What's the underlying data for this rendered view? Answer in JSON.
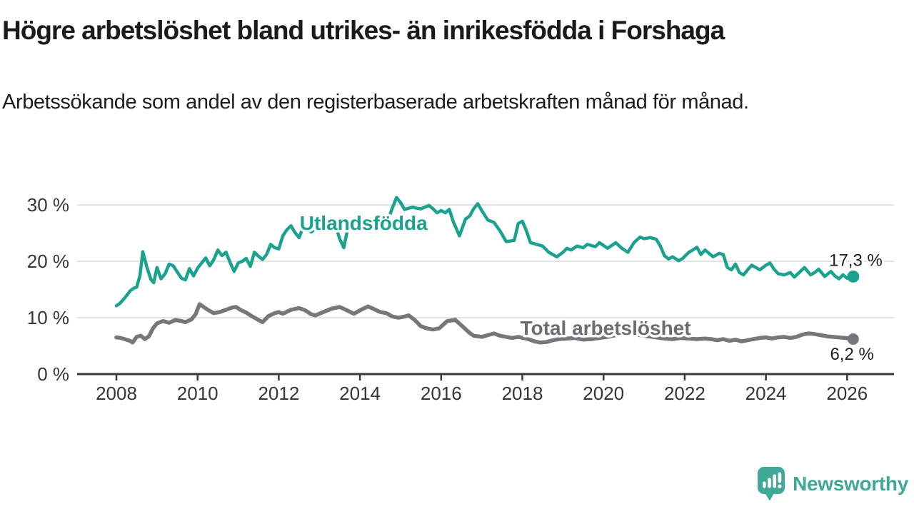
{
  "header": {
    "title": "Högre arbetslöshet bland utrikes- än inrikesfödda i Forshaga",
    "subtitle": "Arbetssökande som andel av den registerbaserade arbetskraften månad för månad."
  },
  "footer": {
    "brand_name": "Newsworthy",
    "logo_icon": "bar-chart-speech-bubble-icon"
  },
  "colors": {
    "accent_teal": "#1aa28f",
    "series_gray": "#76767b",
    "series_label_gray": "#6c6c71",
    "axis_text": "#363636",
    "gridline": "#d8d8d8",
    "axis_line": "#3a3a3a",
    "value_label_text": "#1f1f1f",
    "logo_teal": "#3fa897",
    "background": "#ffffff"
  },
  "chart_data": {
    "type": "line",
    "title": "Högre arbetslöshet bland utrikes- än inrikesfödda i Forshaga",
    "subtitle": "Arbetssökande som andel av den registerbaserade arbetskraften månad för månad.",
    "unit": "%",
    "grid": "horizontal-only",
    "legend_position": "inline-labels-on-lines",
    "x_axis": {
      "tick_years": [
        2008,
        2010,
        2012,
        2014,
        2016,
        2018,
        2020,
        2022,
        2024,
        2026
      ],
      "tick_labels": [
        "2008",
        "2010",
        "2012",
        "2014",
        "2016",
        "2018",
        "2020",
        "2022",
        "2024",
        "2026"
      ],
      "range": [
        2007.0,
        2027.2
      ]
    },
    "y_axis": {
      "tick_values": [
        0,
        10,
        20,
        30
      ],
      "tick_labels": [
        "0 %",
        "10 %",
        "20 %",
        "30 %"
      ],
      "range": [
        0,
        32
      ]
    },
    "series": [
      {
        "id": "total",
        "name": "Total arbetslöshet",
        "color": "#76767b",
        "label_color": "#6c6c71",
        "line_width": 5.5,
        "end_value": 6.2,
        "end_value_label": "6,2 %",
        "label_anchor": {
          "x_year": 2020.05,
          "y_pct": 6.96
        },
        "points": [
          [
            2008.0,
            6.5
          ],
          [
            2008.1,
            6.4
          ],
          [
            2008.2,
            6.2
          ],
          [
            2008.33,
            5.9
          ],
          [
            2008.4,
            5.6
          ],
          [
            2008.5,
            6.6
          ],
          [
            2008.6,
            6.8
          ],
          [
            2008.7,
            6.2
          ],
          [
            2008.8,
            6.7
          ],
          [
            2008.9,
            8.1
          ],
          [
            2009.0,
            9.0
          ],
          [
            2009.15,
            9.4
          ],
          [
            2009.3,
            9.1
          ],
          [
            2009.45,
            9.6
          ],
          [
            2009.6,
            9.4
          ],
          [
            2009.7,
            9.2
          ],
          [
            2009.85,
            9.7
          ],
          [
            2009.95,
            10.6
          ],
          [
            2010.05,
            12.4
          ],
          [
            2010.15,
            11.9
          ],
          [
            2010.25,
            11.4
          ],
          [
            2010.4,
            10.8
          ],
          [
            2010.55,
            11.0
          ],
          [
            2010.7,
            11.4
          ],
          [
            2010.85,
            11.8
          ],
          [
            2010.95,
            11.9
          ],
          [
            2011.05,
            11.4
          ],
          [
            2011.2,
            10.9
          ],
          [
            2011.35,
            10.2
          ],
          [
            2011.5,
            9.6
          ],
          [
            2011.6,
            9.2
          ],
          [
            2011.75,
            10.3
          ],
          [
            2011.9,
            10.8
          ],
          [
            2012.0,
            11.0
          ],
          [
            2012.1,
            10.7
          ],
          [
            2012.3,
            11.4
          ],
          [
            2012.5,
            11.7
          ],
          [
            2012.65,
            11.3
          ],
          [
            2012.8,
            10.6
          ],
          [
            2012.9,
            10.4
          ],
          [
            2013.1,
            11.0
          ],
          [
            2013.3,
            11.6
          ],
          [
            2013.5,
            11.9
          ],
          [
            2013.65,
            11.4
          ],
          [
            2013.85,
            10.7
          ],
          [
            2014.0,
            11.3
          ],
          [
            2014.2,
            12.0
          ],
          [
            2014.35,
            11.5
          ],
          [
            2014.5,
            11.0
          ],
          [
            2014.65,
            10.8
          ],
          [
            2014.8,
            10.2
          ],
          [
            2014.95,
            10.0
          ],
          [
            2015.1,
            10.2
          ],
          [
            2015.2,
            10.4
          ],
          [
            2015.35,
            9.6
          ],
          [
            2015.5,
            8.5
          ],
          [
            2015.65,
            8.1
          ],
          [
            2015.8,
            7.9
          ],
          [
            2015.95,
            8.1
          ],
          [
            2016.15,
            9.4
          ],
          [
            2016.35,
            9.6
          ],
          [
            2016.55,
            8.3
          ],
          [
            2016.7,
            7.3
          ],
          [
            2016.8,
            6.8
          ],
          [
            2017.0,
            6.6
          ],
          [
            2017.15,
            6.9
          ],
          [
            2017.3,
            7.2
          ],
          [
            2017.45,
            6.8
          ],
          [
            2017.6,
            6.6
          ],
          [
            2017.75,
            6.4
          ],
          [
            2017.9,
            6.6
          ],
          [
            2018.1,
            6.3
          ],
          [
            2018.3,
            5.8
          ],
          [
            2018.45,
            5.6
          ],
          [
            2018.6,
            5.7
          ],
          [
            2018.75,
            6.0
          ],
          [
            2018.9,
            6.2
          ],
          [
            2019.1,
            6.3
          ],
          [
            2019.3,
            6.4
          ],
          [
            2019.5,
            6.1
          ],
          [
            2019.7,
            6.2
          ],
          [
            2019.9,
            6.4
          ],
          [
            2020.1,
            6.6
          ],
          [
            2020.3,
            6.9
          ],
          [
            2020.5,
            7.3
          ],
          [
            2020.7,
            7.1
          ],
          [
            2020.9,
            6.9
          ],
          [
            2021.1,
            6.7
          ],
          [
            2021.3,
            6.5
          ],
          [
            2021.5,
            6.3
          ],
          [
            2021.7,
            6.2
          ],
          [
            2021.9,
            6.4
          ],
          [
            2022.1,
            6.3
          ],
          [
            2022.3,
            6.2
          ],
          [
            2022.5,
            6.3
          ],
          [
            2022.65,
            6.2
          ],
          [
            2022.8,
            6.0
          ],
          [
            2022.95,
            6.2
          ],
          [
            2023.1,
            5.9
          ],
          [
            2023.25,
            6.1
          ],
          [
            2023.4,
            5.8
          ],
          [
            2023.55,
            6.0
          ],
          [
            2023.7,
            6.2
          ],
          [
            2023.85,
            6.4
          ],
          [
            2024.0,
            6.5
          ],
          [
            2024.15,
            6.3
          ],
          [
            2024.3,
            6.5
          ],
          [
            2024.45,
            6.6
          ],
          [
            2024.6,
            6.4
          ],
          [
            2024.75,
            6.6
          ],
          [
            2024.9,
            7.0
          ],
          [
            2025.05,
            7.2
          ],
          [
            2025.2,
            7.1
          ],
          [
            2025.35,
            6.9
          ],
          [
            2025.5,
            6.7
          ],
          [
            2025.65,
            6.6
          ],
          [
            2025.8,
            6.5
          ],
          [
            2025.95,
            6.4
          ],
          [
            2026.15,
            6.2
          ]
        ]
      },
      {
        "id": "utlandsfodda",
        "name": "Utlandsfödda",
        "color": "#1aa28f",
        "label_color": "#1aa28f",
        "line_width": 4.5,
        "end_value": 17.3,
        "end_value_label": "17,3 %",
        "label_anchor": {
          "x_year": 2014.09,
          "y_pct": 25.6
        },
        "points": [
          [
            2008.0,
            12.1
          ],
          [
            2008.08,
            12.5
          ],
          [
            2008.17,
            13.2
          ],
          [
            2008.25,
            13.9
          ],
          [
            2008.33,
            14.7
          ],
          [
            2008.42,
            15.2
          ],
          [
            2008.5,
            15.4
          ],
          [
            2008.58,
            17.5
          ],
          [
            2008.65,
            21.7
          ],
          [
            2008.75,
            19.0
          ],
          [
            2008.85,
            16.8
          ],
          [
            2008.92,
            16.2
          ],
          [
            2009.0,
            18.9
          ],
          [
            2009.1,
            16.9
          ],
          [
            2009.2,
            17.8
          ],
          [
            2009.3,
            19.5
          ],
          [
            2009.4,
            19.2
          ],
          [
            2009.5,
            18.1
          ],
          [
            2009.6,
            17.0
          ],
          [
            2009.7,
            16.7
          ],
          [
            2009.8,
            18.7
          ],
          [
            2009.9,
            17.4
          ],
          [
            2010.0,
            18.8
          ],
          [
            2010.1,
            19.7
          ],
          [
            2010.2,
            20.6
          ],
          [
            2010.3,
            19.2
          ],
          [
            2010.4,
            20.3
          ],
          [
            2010.5,
            22.0
          ],
          [
            2010.6,
            21.0
          ],
          [
            2010.7,
            21.6
          ],
          [
            2010.8,
            19.8
          ],
          [
            2010.9,
            18.2
          ],
          [
            2011.0,
            19.7
          ],
          [
            2011.1,
            20.0
          ],
          [
            2011.2,
            20.5
          ],
          [
            2011.3,
            19.1
          ],
          [
            2011.4,
            21.6
          ],
          [
            2011.5,
            20.9
          ],
          [
            2011.6,
            20.3
          ],
          [
            2011.7,
            21.2
          ],
          [
            2011.8,
            23.0
          ],
          [
            2011.9,
            22.4
          ],
          [
            2012.0,
            22.2
          ],
          [
            2012.1,
            24.5
          ],
          [
            2012.2,
            25.6
          ],
          [
            2012.3,
            26.3
          ],
          [
            2012.4,
            25.1
          ],
          [
            2012.5,
            24.2
          ],
          [
            2012.6,
            26.0
          ],
          [
            2012.7,
            25.6
          ],
          [
            2012.8,
            25.2
          ],
          [
            2012.9,
            25.8
          ],
          [
            2013.0,
            26.4
          ],
          [
            2013.1,
            26.0
          ],
          [
            2013.2,
            25.5
          ],
          [
            2013.3,
            26.0
          ],
          [
            2013.4,
            26.3
          ],
          [
            2013.5,
            24.0
          ],
          [
            2013.6,
            22.4
          ],
          [
            2013.7,
            25.8
          ],
          [
            2013.8,
            26.2
          ],
          [
            2013.9,
            26.5
          ],
          [
            2014.0,
            26.2
          ],
          [
            2014.1,
            26.0
          ],
          [
            2014.2,
            26.4
          ],
          [
            2014.3,
            26.8
          ],
          [
            2014.4,
            26.6
          ],
          [
            2014.5,
            26.5
          ],
          [
            2014.6,
            27.0
          ],
          [
            2014.7,
            27.5
          ],
          [
            2014.8,
            29.5
          ],
          [
            2014.9,
            31.3
          ],
          [
            2015.0,
            30.4
          ],
          [
            2015.1,
            29.2
          ],
          [
            2015.2,
            29.4
          ],
          [
            2015.3,
            29.6
          ],
          [
            2015.4,
            29.4
          ],
          [
            2015.5,
            29.3
          ],
          [
            2015.6,
            29.6
          ],
          [
            2015.7,
            29.9
          ],
          [
            2015.8,
            29.3
          ],
          [
            2015.9,
            28.6
          ],
          [
            2016.0,
            29.0
          ],
          [
            2016.1,
            28.6
          ],
          [
            2016.2,
            29.2
          ],
          [
            2016.3,
            27.0
          ],
          [
            2016.45,
            24.5
          ],
          [
            2016.6,
            27.5
          ],
          [
            2016.7,
            28.0
          ],
          [
            2016.8,
            29.3
          ],
          [
            2016.9,
            30.2
          ],
          [
            2017.0,
            29.0
          ],
          [
            2017.15,
            27.3
          ],
          [
            2017.3,
            26.9
          ],
          [
            2017.45,
            25.4
          ],
          [
            2017.6,
            23.5
          ],
          [
            2017.8,
            23.7
          ],
          [
            2017.9,
            26.7
          ],
          [
            2018.0,
            27.1
          ],
          [
            2018.1,
            25.4
          ],
          [
            2018.2,
            23.3
          ],
          [
            2018.3,
            23.1
          ],
          [
            2018.5,
            22.7
          ],
          [
            2018.65,
            21.6
          ],
          [
            2018.85,
            20.8
          ],
          [
            2019.0,
            21.6
          ],
          [
            2019.1,
            22.3
          ],
          [
            2019.2,
            22.0
          ],
          [
            2019.35,
            22.7
          ],
          [
            2019.5,
            22.4
          ],
          [
            2019.6,
            23.0
          ],
          [
            2019.8,
            22.6
          ],
          [
            2019.9,
            23.3
          ],
          [
            2020.1,
            22.3
          ],
          [
            2020.3,
            23.3
          ],
          [
            2020.45,
            22.3
          ],
          [
            2020.6,
            21.6
          ],
          [
            2020.75,
            23.3
          ],
          [
            2020.9,
            24.3
          ],
          [
            2021.0,
            24.0
          ],
          [
            2021.15,
            24.2
          ],
          [
            2021.3,
            23.9
          ],
          [
            2021.4,
            22.7
          ],
          [
            2021.5,
            21.0
          ],
          [
            2021.6,
            20.4
          ],
          [
            2021.7,
            20.8
          ],
          [
            2021.85,
            20.1
          ],
          [
            2021.95,
            20.5
          ],
          [
            2022.1,
            21.6
          ],
          [
            2022.2,
            22.0
          ],
          [
            2022.3,
            22.5
          ],
          [
            2022.4,
            21.2
          ],
          [
            2022.5,
            22.0
          ],
          [
            2022.6,
            21.4
          ],
          [
            2022.7,
            20.8
          ],
          [
            2022.85,
            21.4
          ],
          [
            2022.95,
            21.2
          ],
          [
            2023.05,
            18.9
          ],
          [
            2023.15,
            18.5
          ],
          [
            2023.25,
            19.5
          ],
          [
            2023.35,
            18.0
          ],
          [
            2023.45,
            17.6
          ],
          [
            2023.55,
            18.5
          ],
          [
            2023.65,
            19.3
          ],
          [
            2023.75,
            18.9
          ],
          [
            2023.85,
            18.5
          ],
          [
            2024.0,
            19.3
          ],
          [
            2024.1,
            19.7
          ],
          [
            2024.2,
            18.6
          ],
          [
            2024.3,
            17.8
          ],
          [
            2024.45,
            17.6
          ],
          [
            2024.6,
            18.0
          ],
          [
            2024.7,
            17.2
          ],
          [
            2024.85,
            18.2
          ],
          [
            2024.95,
            18.9
          ],
          [
            2025.1,
            17.6
          ],
          [
            2025.2,
            18.0
          ],
          [
            2025.3,
            18.6
          ],
          [
            2025.45,
            17.3
          ],
          [
            2025.6,
            18.2
          ],
          [
            2025.7,
            17.4
          ],
          [
            2025.8,
            16.9
          ],
          [
            2025.9,
            17.6
          ],
          [
            2026.0,
            17.0
          ],
          [
            2026.15,
            17.3
          ]
        ]
      }
    ]
  }
}
